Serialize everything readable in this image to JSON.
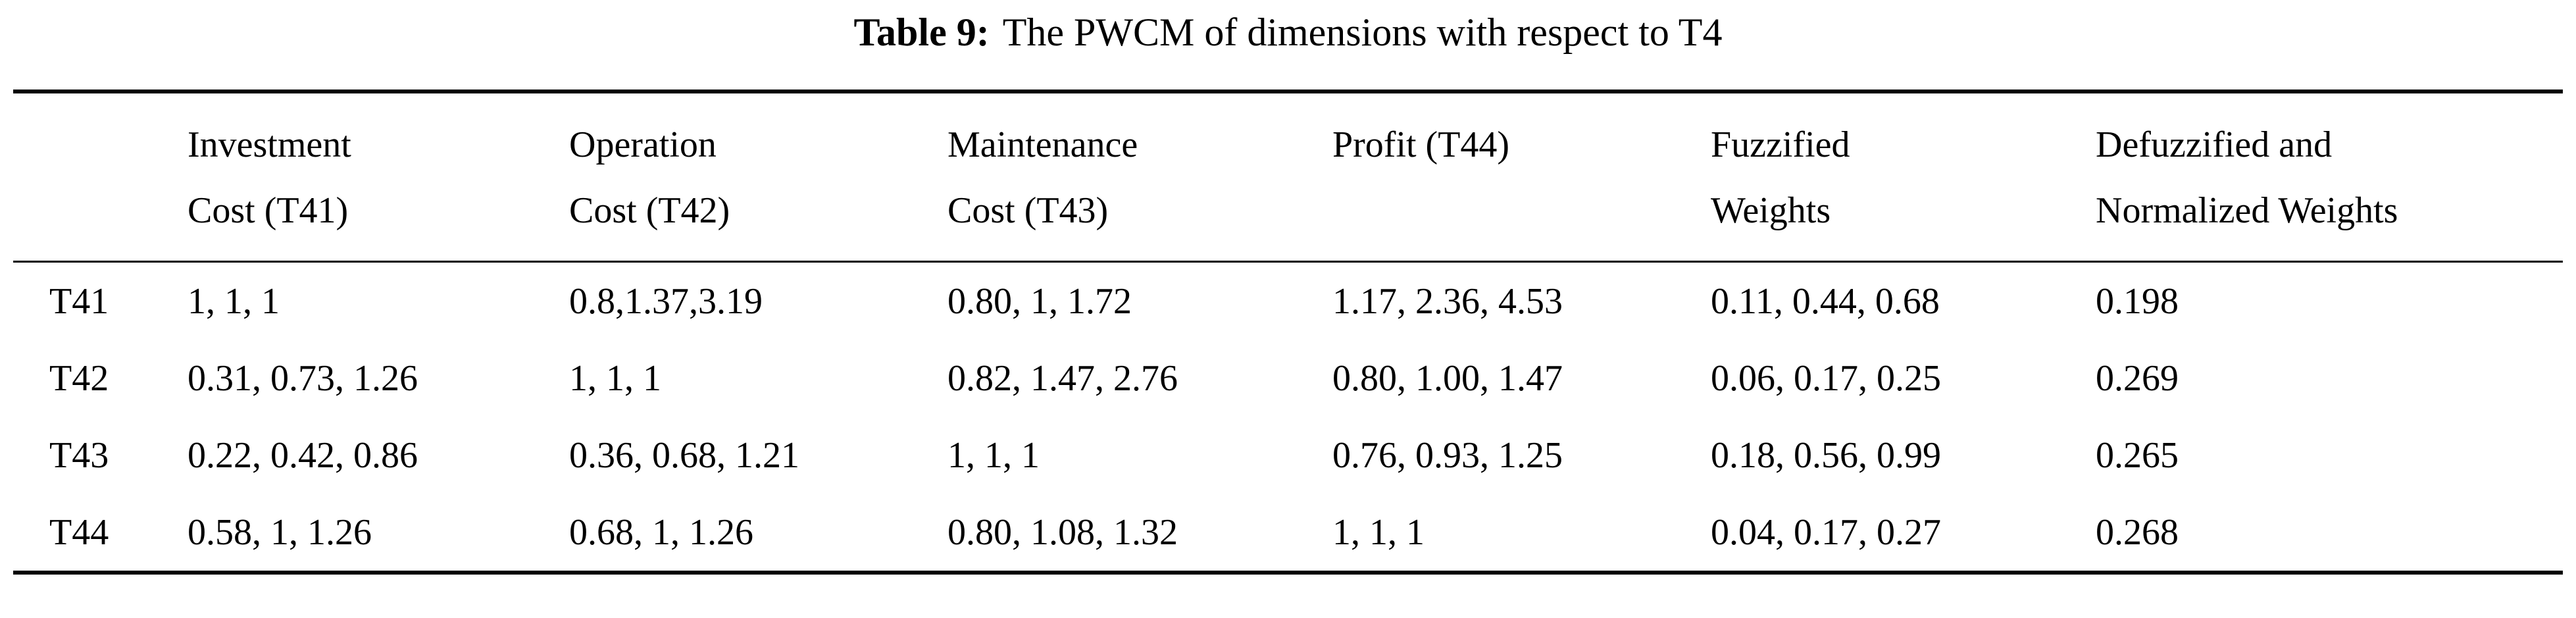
{
  "title": {
    "label": "Table 9:",
    "rest": "The PWCM of dimensions with respect to T4"
  },
  "table": {
    "headers": [
      {
        "line1": "Investment",
        "line2": "Cost (T41)"
      },
      {
        "line1": "Operation",
        "line2": "Cost (T42)"
      },
      {
        "line1": "Maintenance",
        "line2": "Cost (T43)"
      },
      {
        "line1": "Profit (T44)",
        "line2": ""
      },
      {
        "line1": "Fuzzified",
        "line2": "Weights"
      },
      {
        "line1": "Defuzzified and",
        "line2": "Normalized Weights"
      }
    ],
    "rows": [
      {
        "label": "T41",
        "cells": [
          "1, 1, 1",
          "0.8,1.37,3.19",
          "0.80, 1, 1.72",
          "1.17, 2.36, 4.53",
          "0.11, 0.44, 0.68",
          "0.198"
        ]
      },
      {
        "label": "T42",
        "cells": [
          "0.31, 0.73, 1.26",
          "1, 1, 1",
          "0.82, 1.47, 2.76",
          "0.80, 1.00, 1.47",
          "0.06, 0.17, 0.25",
          "0.269"
        ]
      },
      {
        "label": "T43",
        "cells": [
          "0.22, 0.42, 0.86",
          "0.36, 0.68, 1.21",
          "1, 1, 1",
          "0.76, 0.93, 1.25",
          "0.18, 0.56, 0.99",
          "0.265"
        ]
      },
      {
        "label": "T44",
        "cells": [
          "0.58, 1, 1.26",
          "0.68, 1, 1.26",
          "0.80, 1.08, 1.32",
          "1, 1, 1",
          "0.04, 0.17, 0.27",
          "0.268"
        ]
      }
    ]
  }
}
